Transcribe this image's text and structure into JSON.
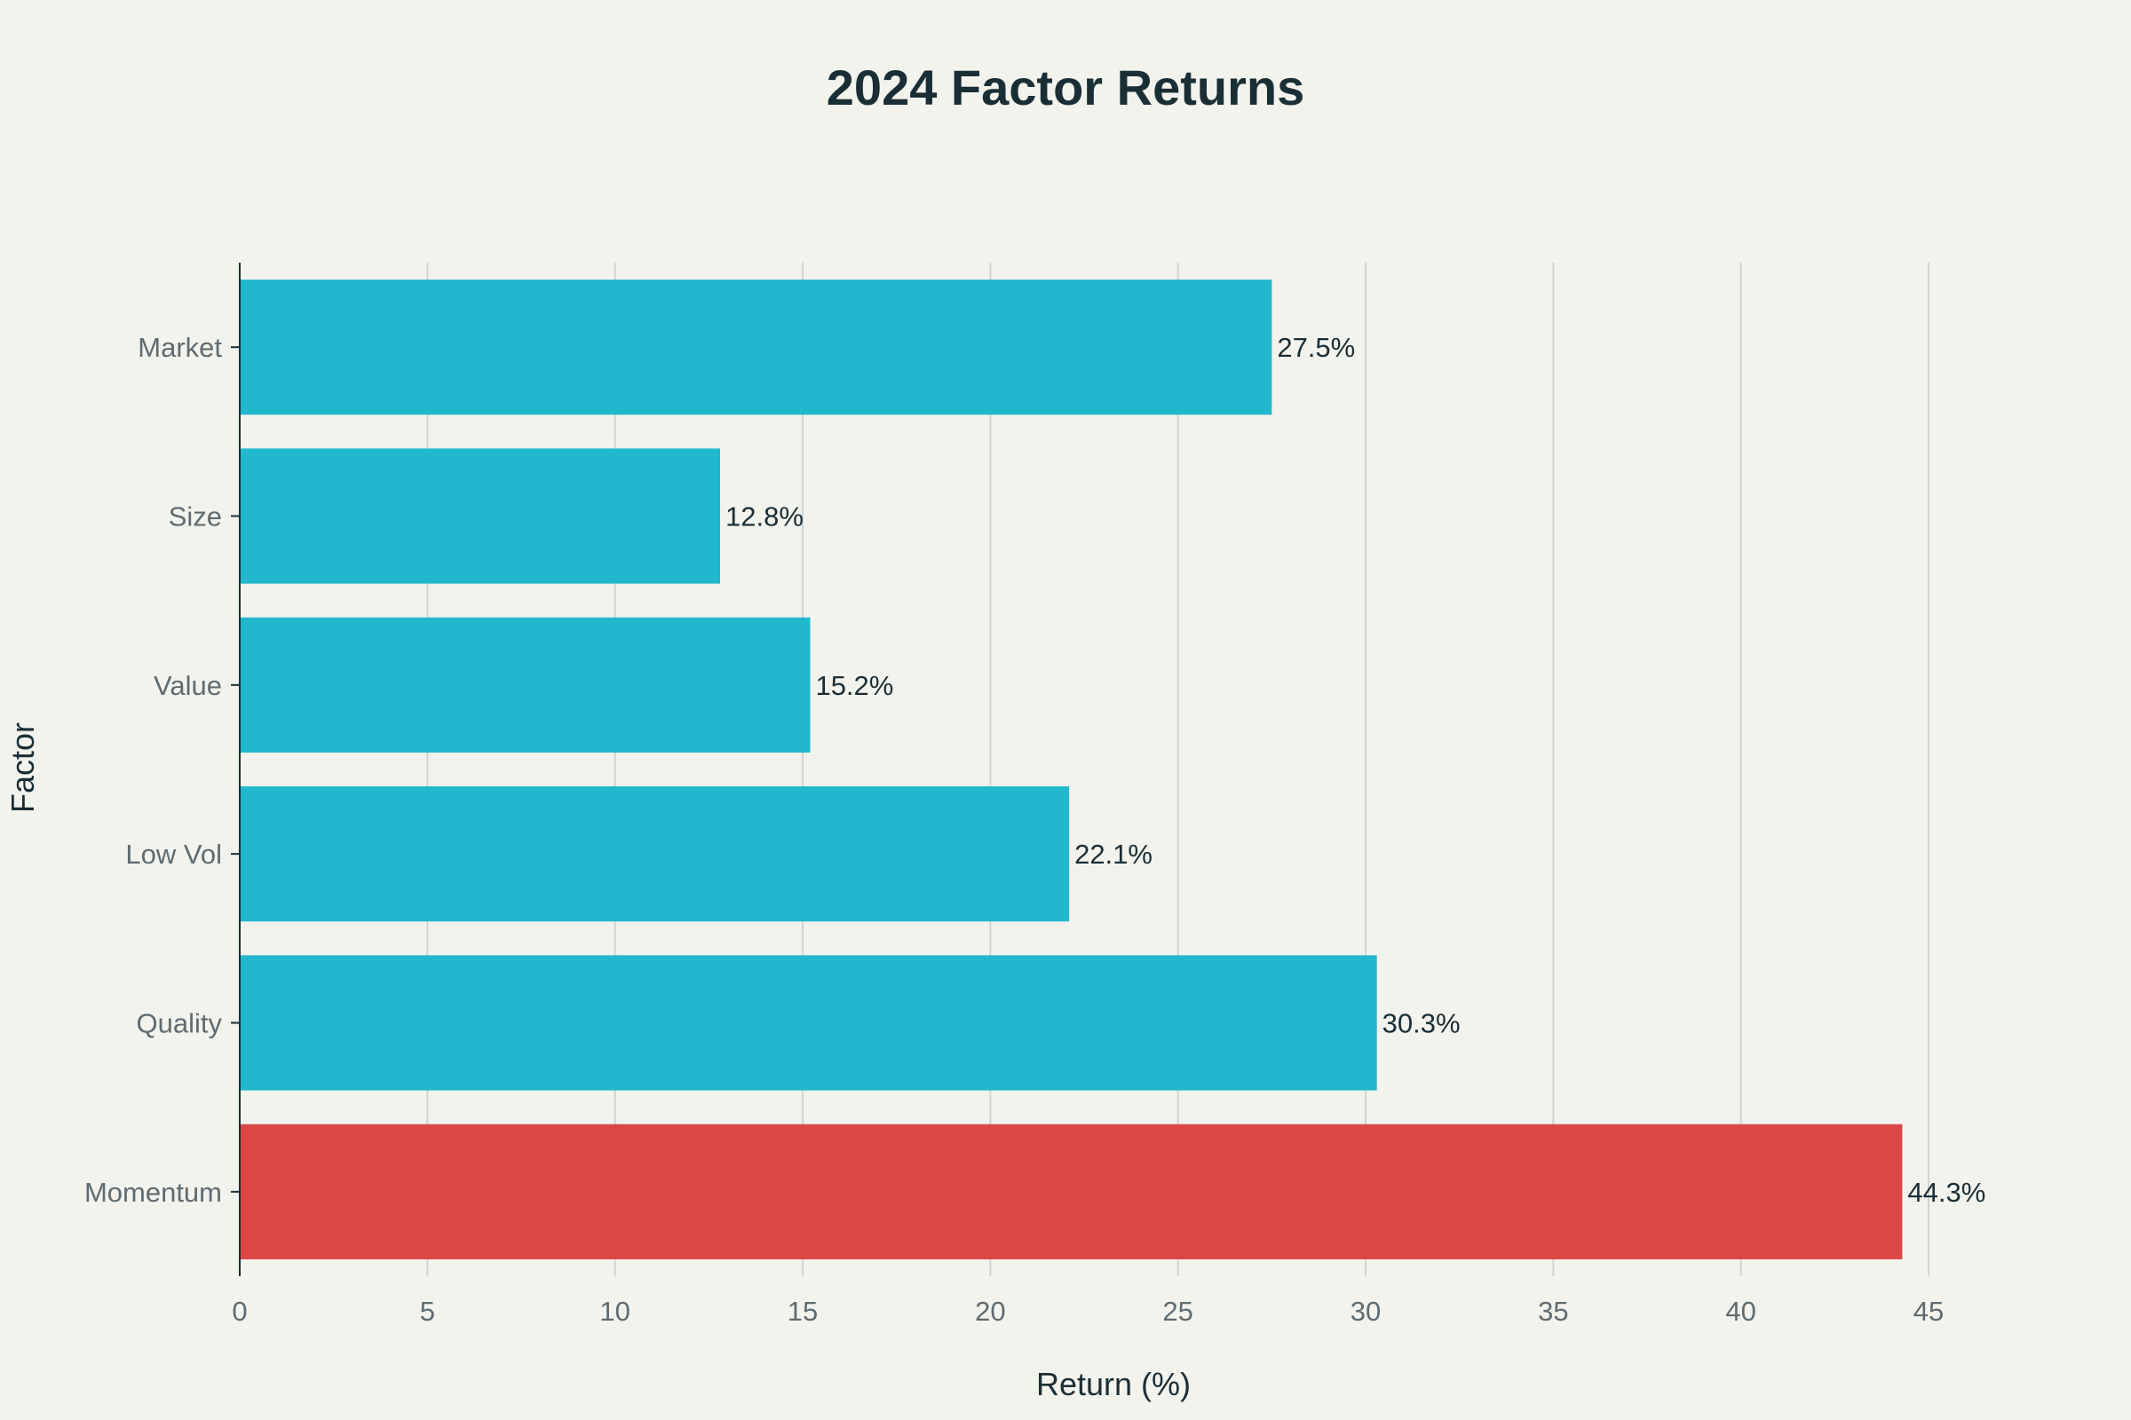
{
  "chart_data": {
    "type": "bar",
    "orientation": "horizontal",
    "title": "2024 Factor Returns",
    "xlabel": "Return (%)",
    "ylabel": "Factor",
    "categories": [
      "Market",
      "Size",
      "Value",
      "Low Vol",
      "Quality",
      "Momentum"
    ],
    "values": [
      27.5,
      12.8,
      15.2,
      22.1,
      30.3,
      44.3
    ],
    "data_labels": [
      "27.5%",
      "12.8%",
      "15.2%",
      "22.1%",
      "30.3%",
      "44.3%"
    ],
    "bar_colors": [
      "#21b8cd",
      "#21b8cd",
      "#21b8cd",
      "#21b8cd",
      "#21b8cd",
      "#db4646"
    ],
    "xlim": [
      0,
      45
    ],
    "xticks": [
      0,
      5,
      10,
      15,
      20,
      25,
      30,
      35,
      40,
      45
    ],
    "grid": "vertical",
    "legend": "none"
  }
}
